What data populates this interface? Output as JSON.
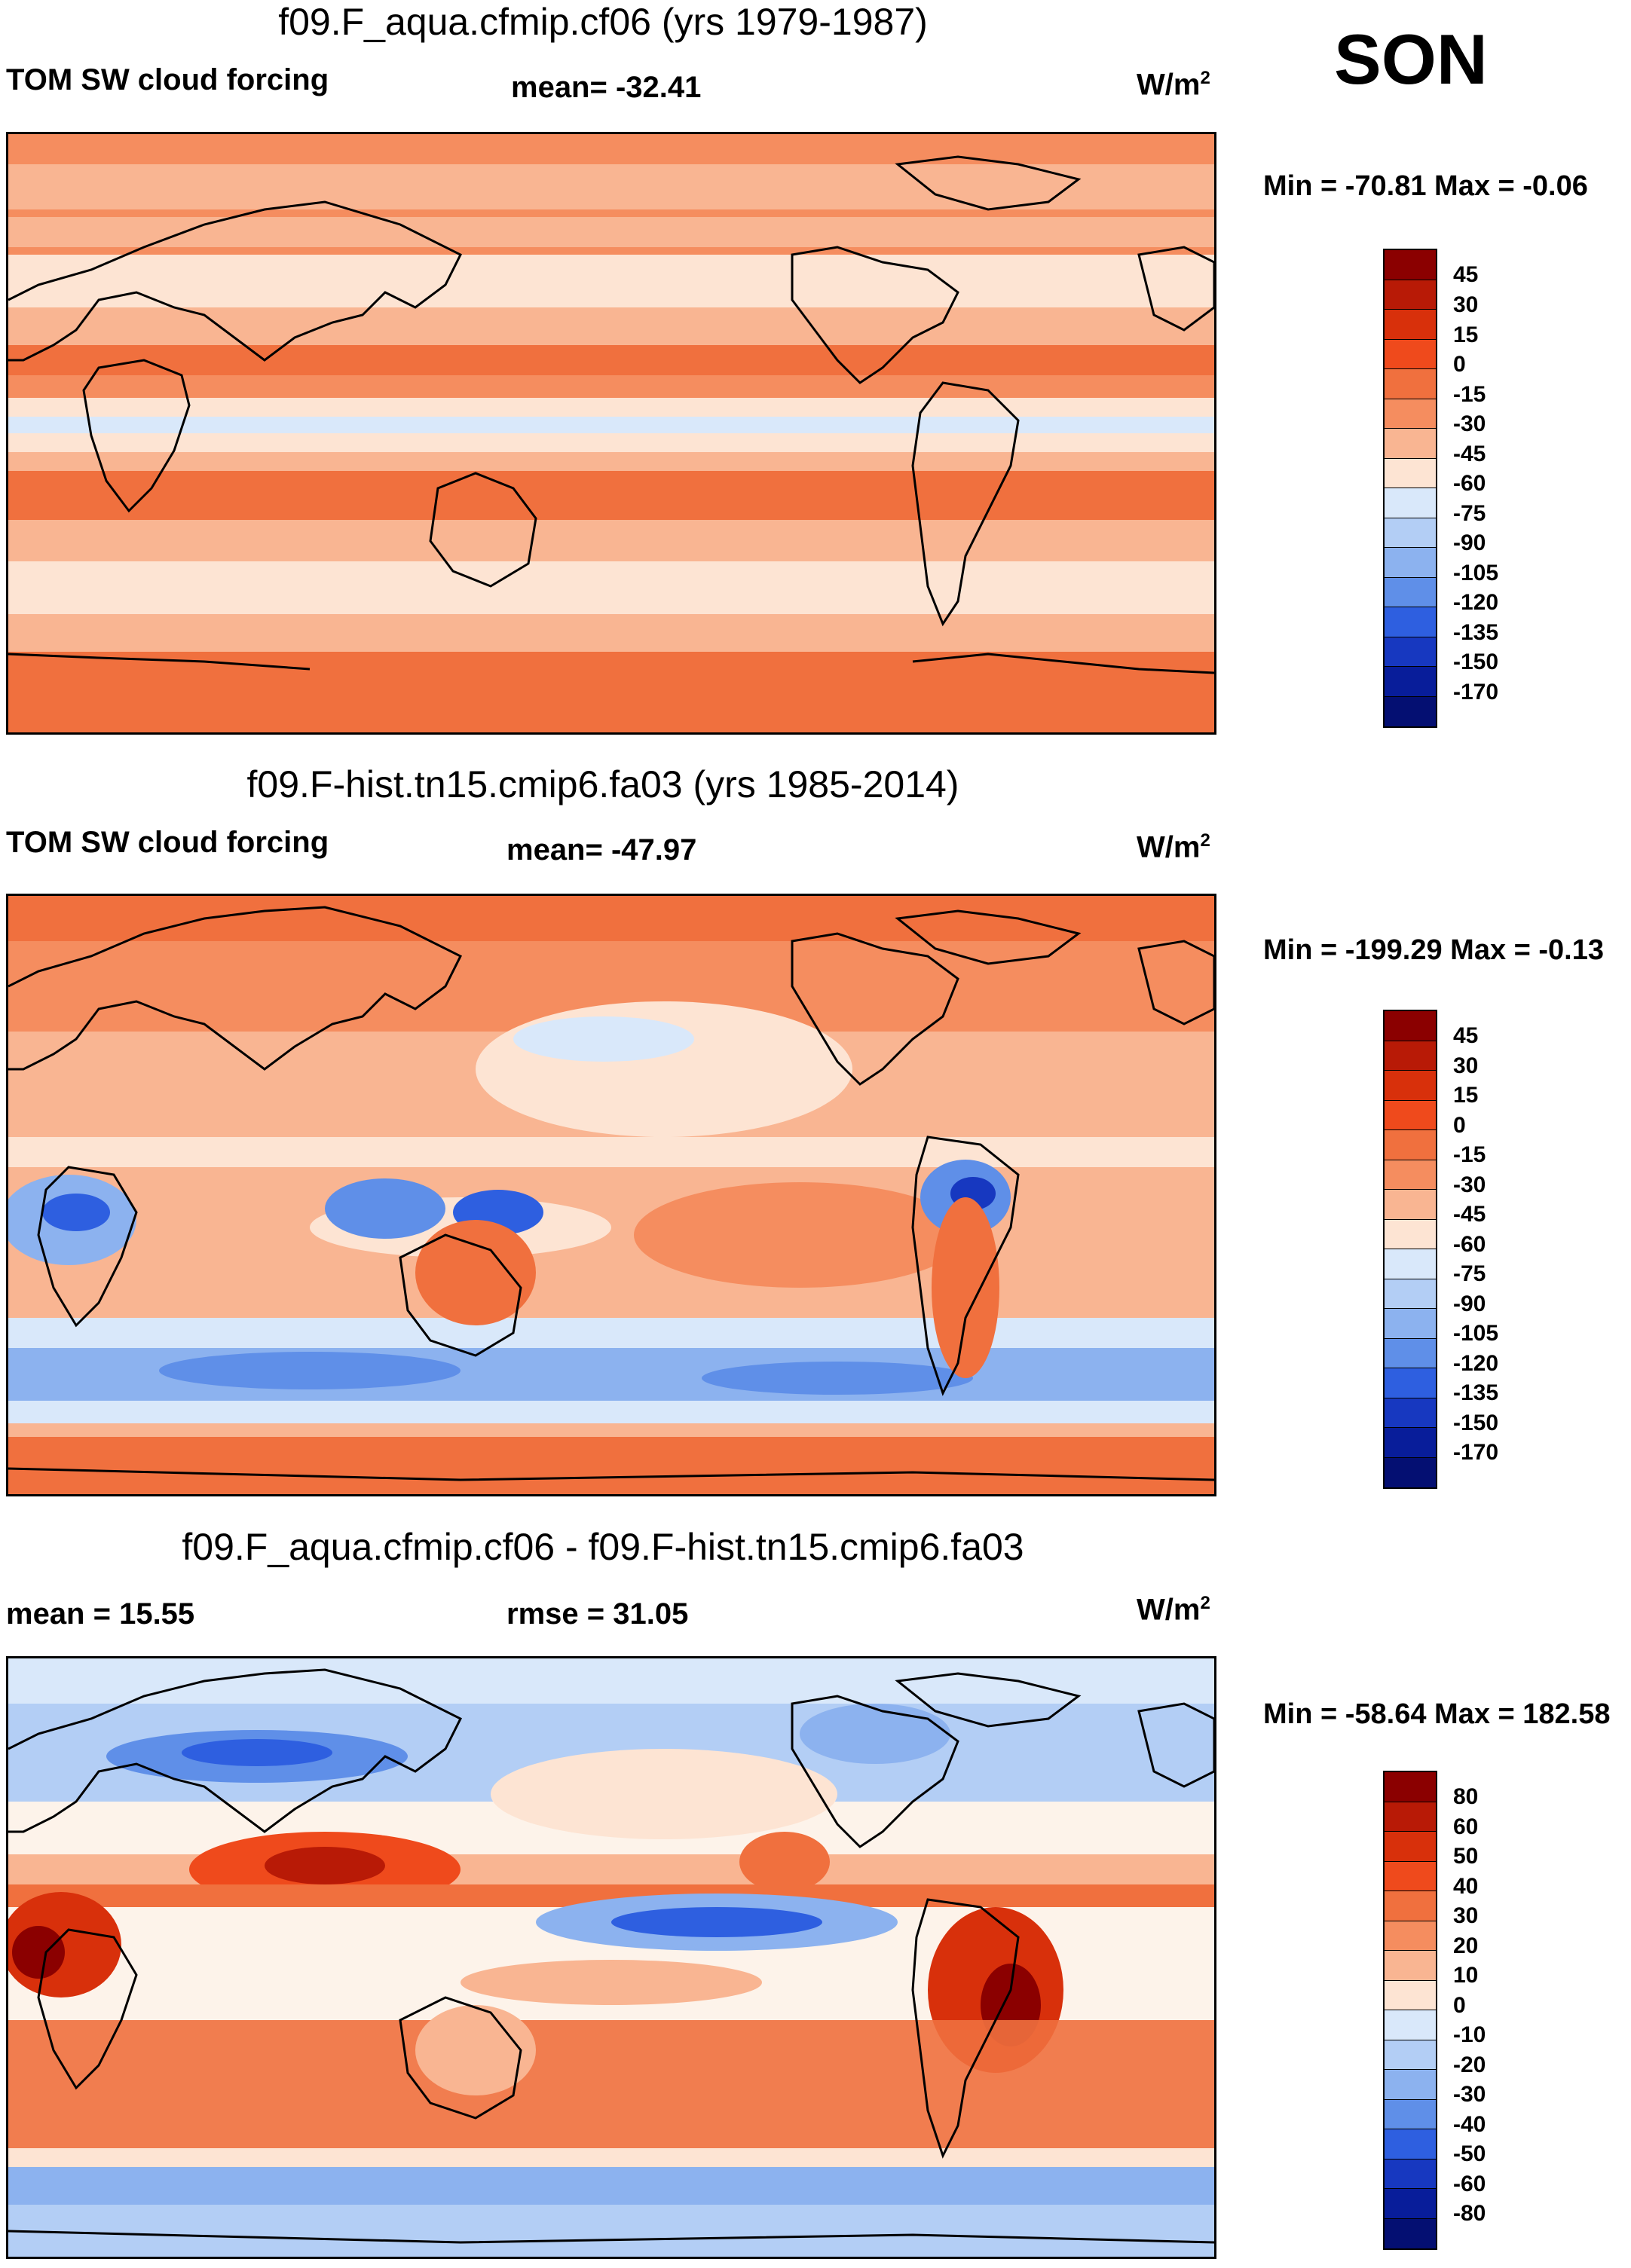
{
  "season": "SON",
  "units_label": "W/m",
  "units_exp": "2",
  "panels": [
    {
      "title": "f09.F_aqua.cfmip.cf06 (yrs 1979-1987)",
      "left_label": "TOM SW cloud forcing",
      "mid_label": "mean= -32.41",
      "minmax": "Min = -70.81 Max =  -0.06",
      "colorbar_ticks": [
        "45",
        "30",
        "15",
        "0",
        "-15",
        "-30",
        "-45",
        "-60",
        "-75",
        "-90",
        "-105",
        "-120",
        "-135",
        "-150",
        "-170"
      ]
    },
    {
      "title": "f09.F-hist.tn15.cmip6.fa03 (yrs 1985-2014)",
      "left_label": "TOM SW cloud forcing",
      "mid_label": "mean= -47.97",
      "minmax": "Min = -199.29 Max =  -0.13",
      "colorbar_ticks": [
        "45",
        "30",
        "15",
        "0",
        "-15",
        "-30",
        "-45",
        "-60",
        "-75",
        "-90",
        "-105",
        "-120",
        "-135",
        "-150",
        "-170"
      ]
    },
    {
      "title": "f09.F_aqua.cfmip.cf06 - f09.F-hist.tn15.cmip6.fa03",
      "left_label": "mean =  15.55",
      "mid_label": "rmse =  31.05",
      "minmax": "Min = -58.64 Max = 182.58",
      "colorbar_ticks": [
        "80",
        "60",
        "50",
        "40",
        "30",
        "20",
        "10",
        "0",
        "-10",
        "-20",
        "-30",
        "-40",
        "-50",
        "-60",
        "-80"
      ]
    }
  ],
  "colors": {
    "palette": [
      "#8b0000",
      "#b81a06",
      "#d8300b",
      "#ef4a1c",
      "#f0703e",
      "#f58d5f",
      "#f9b592",
      "#fde4d3",
      "#fdf3ea",
      "#d9e8fa",
      "#b3cef5",
      "#8cb2ef",
      "#5f8fe8",
      "#2e5fe0",
      "#1738c0",
      "#081d9a",
      "#040f72"
    ]
  }
}
